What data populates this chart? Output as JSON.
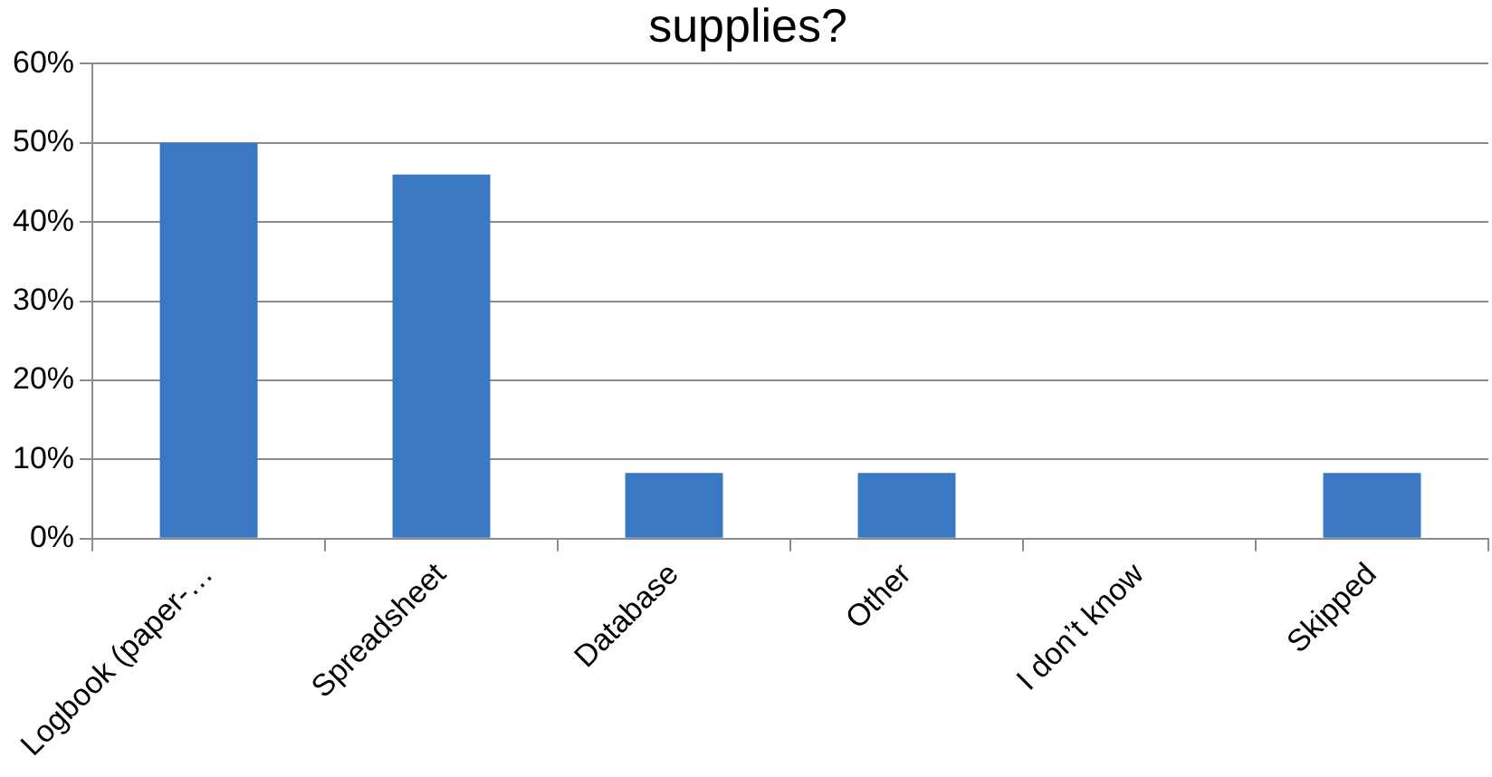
{
  "chart_data": {
    "type": "bar",
    "title": "supplies?",
    "categories": [
      "Logbook (paper-…",
      "Spreadsheet",
      "Database",
      "Other",
      "I don’t know",
      "Skipped"
    ],
    "values": [
      50,
      46,
      8.3,
      8.3,
      0,
      8.3
    ],
    "color": "#3a78c4",
    "ylim": [
      0,
      60
    ],
    "yticks": [
      {
        "value": 0,
        "label": "0%"
      },
      {
        "value": 10,
        "label": "10%"
      },
      {
        "value": 20,
        "label": "20%"
      },
      {
        "value": 30,
        "label": "30%"
      },
      {
        "value": 40,
        "label": "40%"
      },
      {
        "value": 50,
        "label": "50%"
      },
      {
        "value": 60,
        "label": "60%"
      }
    ],
    "grid": "y",
    "legend": false
  }
}
